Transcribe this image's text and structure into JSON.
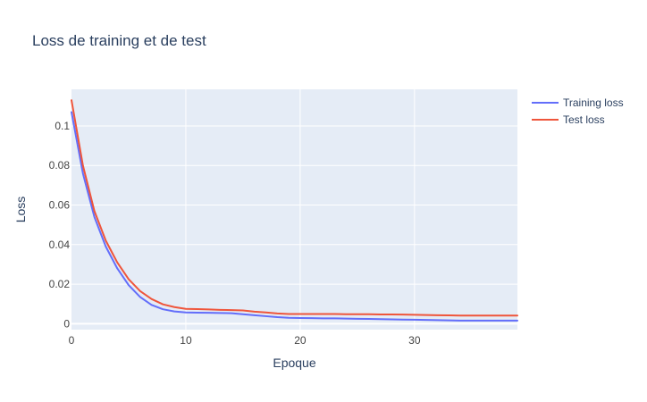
{
  "chart_data": {
    "type": "line",
    "title": "Loss de training et de test",
    "xlabel": "Epoque",
    "ylabel": "Loss",
    "xlim": [
      0,
      39
    ],
    "ylim": [
      -0.003,
      0.1185
    ],
    "x_ticks": [
      0,
      10,
      20,
      30
    ],
    "x_tick_labels": [
      "0",
      "10",
      "20",
      "30"
    ],
    "y_ticks": [
      0,
      0.02,
      0.04,
      0.06,
      0.08,
      0.1
    ],
    "y_tick_labels": [
      "0",
      "0.02",
      "0.04",
      "0.06",
      "0.08",
      "0.1"
    ],
    "grid": true,
    "legend_position": "top-right",
    "x": [
      0,
      1,
      2,
      3,
      4,
      5,
      6,
      7,
      8,
      9,
      10,
      11,
      12,
      13,
      14,
      15,
      16,
      17,
      18,
      19,
      20,
      21,
      22,
      23,
      24,
      25,
      26,
      27,
      28,
      29,
      30,
      31,
      32,
      33,
      34,
      35,
      36,
      37,
      38,
      39
    ],
    "series": [
      {
        "name": "Training loss",
        "color": "#636efa",
        "values": [
          0.107,
          0.076,
          0.054,
          0.039,
          0.028,
          0.0195,
          0.0135,
          0.0095,
          0.0073,
          0.0062,
          0.0057,
          0.0056,
          0.0055,
          0.0054,
          0.0053,
          0.0048,
          0.0043,
          0.0038,
          0.0033,
          0.003,
          0.0029,
          0.0028,
          0.0027,
          0.0027,
          0.0026,
          0.0025,
          0.0024,
          0.0023,
          0.0022,
          0.0021,
          0.002,
          0.0019,
          0.0018,
          0.0017,
          0.0016,
          0.0016,
          0.0016,
          0.0016,
          0.0016,
          0.0016
        ]
      },
      {
        "name": "Test loss",
        "color": "#ef553b",
        "values": [
          0.113,
          0.08,
          0.057,
          0.042,
          0.031,
          0.0225,
          0.0165,
          0.0125,
          0.0098,
          0.0084,
          0.0075,
          0.0074,
          0.0072,
          0.007,
          0.0069,
          0.0067,
          0.0061,
          0.0057,
          0.0052,
          0.0049,
          0.0049,
          0.0049,
          0.0049,
          0.0049,
          0.0048,
          0.0048,
          0.0048,
          0.0047,
          0.0047,
          0.0046,
          0.0045,
          0.0044,
          0.0043,
          0.0042,
          0.0041,
          0.0041,
          0.0041,
          0.0041,
          0.0041,
          0.0041
        ]
      }
    ]
  },
  "colors": {
    "plot_background": "#e5ecf6",
    "grid": "#ffffff",
    "text": "#2a3f5f",
    "tick_text": "#444444"
  }
}
